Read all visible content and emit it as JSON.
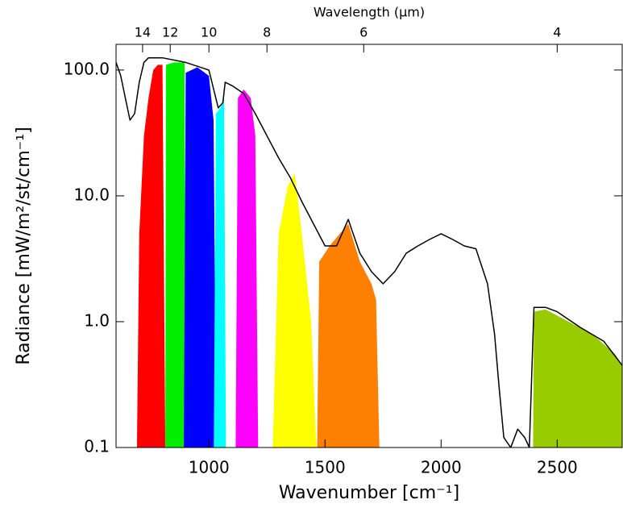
{
  "chart_data": {
    "type": "spectrum",
    "xlabel": "Wavenumber [cm⁻¹]",
    "ylabel": "Radiance [mW/m²/st/cm⁻¹]",
    "xlim": [
      600,
      2780
    ],
    "ylim": [
      0.1,
      160
    ],
    "log_y": true,
    "xticks": [
      1000,
      1500,
      2000,
      2500
    ],
    "yticks": [
      0.1,
      {
        "value": 1,
        "label": "1.0"
      },
      {
        "value": 10,
        "label": "10.0"
      },
      {
        "value": 100,
        "label": "100.0"
      }
    ],
    "top_axis": {
      "label": "Wavelength (μm)",
      "ticks": [
        14,
        12,
        10,
        8,
        6,
        4
      ]
    },
    "line_color": "#000000",
    "x": [
      600,
      620,
      640,
      660,
      680,
      700,
      720,
      740,
      800,
      900,
      1000,
      1040,
      1060,
      1070,
      1100,
      1150,
      1200,
      1250,
      1300,
      1350,
      1400,
      1450,
      1500,
      1550,
      1600,
      1650,
      1700,
      1750,
      1800,
      1850,
      1900,
      1950,
      2000,
      2050,
      2100,
      2150,
      2200,
      2230,
      2250,
      2270,
      2300,
      2330,
      2360,
      2380,
      2400,
      2450,
      2500,
      2600,
      2700,
      2780
    ],
    "values": [
      115,
      90,
      60,
      40,
      45,
      80,
      115,
      125,
      125,
      115,
      100,
      50,
      55,
      80,
      75,
      65,
      45,
      30,
      20,
      14,
      9,
      6,
      4,
      4,
      6.5,
      3.5,
      2.5,
      2,
      2.5,
      3.5,
      4,
      4.5,
      5,
      4.5,
      4,
      3.8,
      2,
      0.8,
      0.3,
      0.12,
      0.1,
      0.14,
      0.12,
      0.1,
      1.3,
      1.3,
      1.2,
      0.9,
      0.7,
      0.45
    ],
    "bands": [
      {
        "color": "#ff0000",
        "x": [
          690,
          700,
          720,
          740,
          760,
          780,
          800,
          812
        ],
        "values": [
          0.1,
          5,
          30,
          60,
          100,
          110,
          110,
          0.1
        ]
      },
      {
        "color": "#00ee00",
        "x": [
          812,
          815,
          850,
          895,
          900
        ],
        "values": [
          0.1,
          110,
          115,
          115,
          0.1
        ]
      },
      {
        "color": "#0000ff",
        "x": [
          892,
          900,
          950,
          1000,
          1020,
          1031
        ],
        "values": [
          0.1,
          95,
          105,
          90,
          40,
          0.1
        ]
      },
      {
        "color": "#00ffff",
        "x": [
          1021,
          1030,
          1050,
          1065,
          1073
        ],
        "values": [
          0.1,
          45,
          50,
          60,
          0.1
        ]
      },
      {
        "color": "#ff00ff",
        "x": [
          1115,
          1125,
          1150,
          1180,
          1200,
          1212
        ],
        "values": [
          0.1,
          60,
          70,
          60,
          30,
          0.1
        ]
      },
      {
        "color": "#ffff00",
        "x": [
          1275,
          1300,
          1340,
          1370,
          1400,
          1440,
          1463
        ],
        "values": [
          0.1,
          5,
          12,
          15,
          5,
          1,
          0.1
        ]
      },
      {
        "color": "#ff8000",
        "x": [
          1466,
          1475,
          1520,
          1600,
          1650,
          1700,
          1720,
          1734
        ],
        "values": [
          0.1,
          3,
          4,
          6,
          3,
          2,
          1.5,
          0.1
        ]
      },
      {
        "color": "#99cc00",
        "x": [
          2396,
          2400,
          2450,
          2550,
          2650,
          2750,
          2780,
          2780
        ],
        "values": [
          0.1,
          1.2,
          1.25,
          1,
          0.8,
          0.55,
          0.45,
          0.1
        ]
      }
    ]
  }
}
